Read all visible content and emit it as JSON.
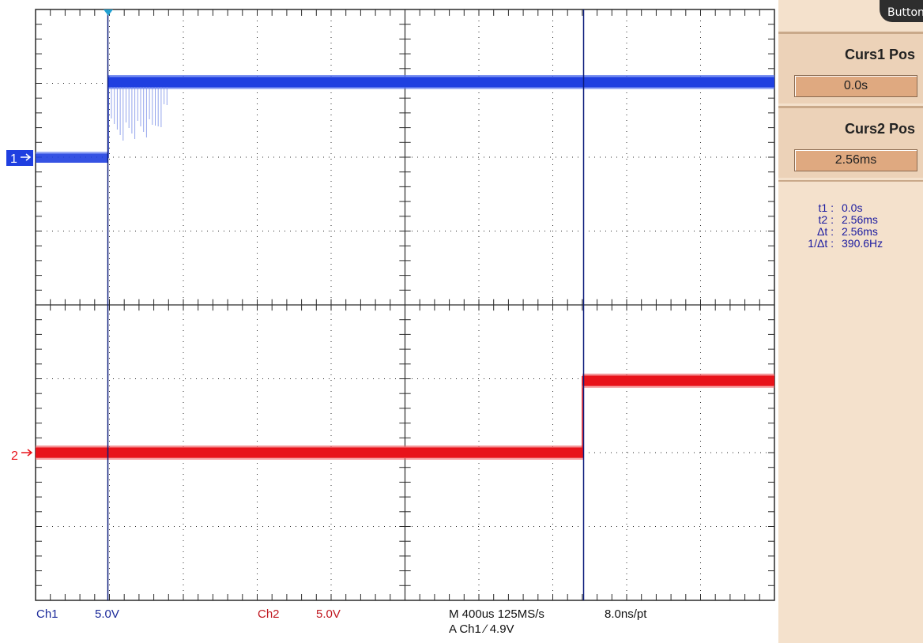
{
  "top_tab": {
    "label": "Button"
  },
  "channels": {
    "ch1": {
      "marker": "1",
      "label": "Ch1",
      "scale": "5.0V",
      "color": "#1f3fe0"
    },
    "ch2": {
      "marker": "2",
      "label": "Ch2",
      "scale": "5.0V",
      "color": "#e8131a"
    }
  },
  "timebase": {
    "line1": "M 400us 125MS/s",
    "line2": "A  Ch1  ∕  4.9V",
    "resolution": "8.0ns/pt"
  },
  "cursor_controls": {
    "curs1": {
      "title": "Curs1 Pos",
      "value": "0.0s"
    },
    "curs2": {
      "title": "Curs2 Pos",
      "value": "2.56ms"
    }
  },
  "measurements": [
    {
      "label": "t1 :",
      "value": "0.0s"
    },
    {
      "label": "t2 :",
      "value": "2.56ms"
    },
    {
      "label": "Δt :",
      "value": "2.56ms"
    },
    {
      "label": "1/Δt :",
      "value": "390.6Hz"
    }
  ],
  "colors": {
    "grid": "#2a2a2a",
    "sidebar_bg": "#f4e1cc",
    "value_box": "#dfa980",
    "readout_text": "#1b1ba0",
    "trigger_marker": "#22a0d0"
  }
}
